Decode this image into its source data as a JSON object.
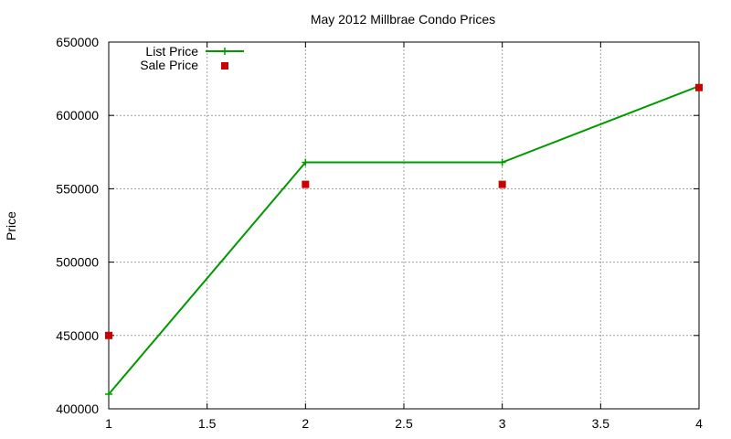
{
  "chart_data": {
    "type": "line",
    "title": "May 2012 Millbrae Condo Prices",
    "xlabel": "",
    "ylabel": "Price",
    "xlim": [
      1,
      4
    ],
    "ylim": [
      400000,
      650000
    ],
    "x_ticks": [
      "1",
      "1.5",
      "2",
      "2.5",
      "3",
      "3.5",
      "4"
    ],
    "y_ticks": [
      "400000",
      "450000",
      "500000",
      "550000",
      "600000",
      "650000"
    ],
    "grid": true,
    "legend_position": "top-left",
    "series": [
      {
        "name": "List Price",
        "style": "line-with-plus-markers",
        "color": "#009900",
        "x": [
          1,
          2,
          3,
          4
        ],
        "y": [
          410000,
          568000,
          568000,
          620000
        ]
      },
      {
        "name": "Sale Price",
        "style": "square-markers",
        "color": "#cc0000",
        "x": [
          1,
          2,
          3,
          4
        ],
        "y": [
          450000,
          553000,
          553000,
          619000
        ]
      }
    ]
  }
}
